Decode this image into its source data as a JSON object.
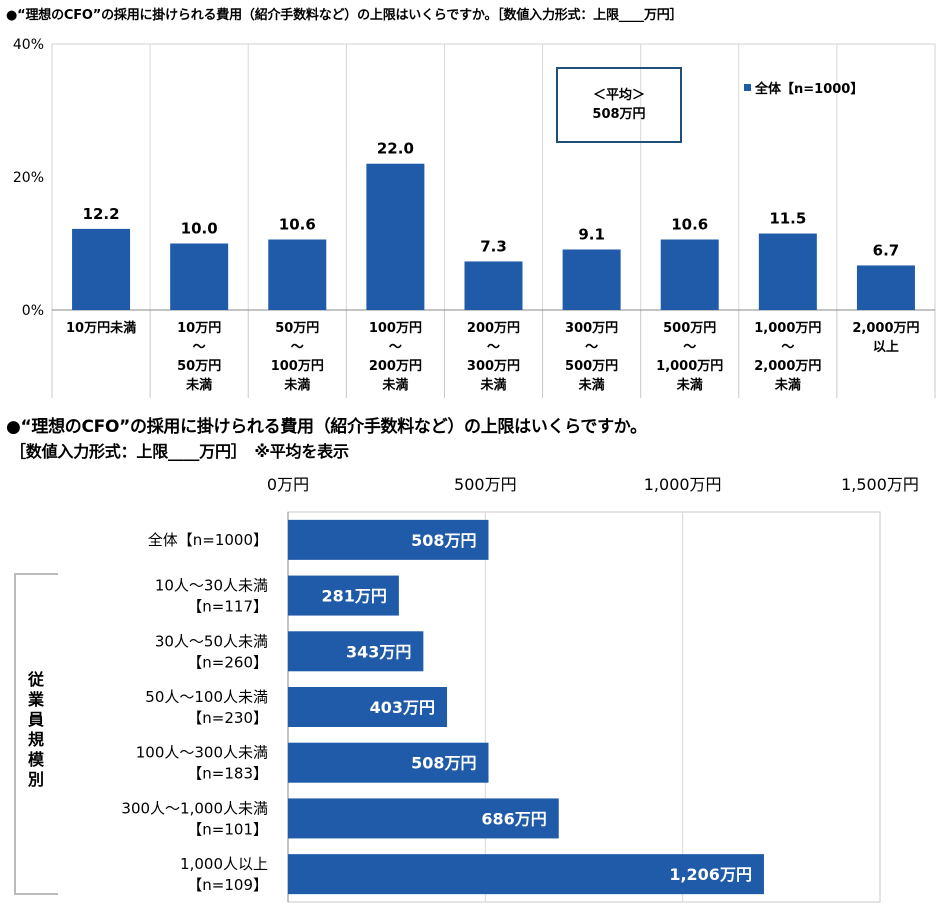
{
  "chart_data": [
    {
      "type": "bar",
      "title": "●“理想のCFO”の採用に掛けられる費用（紹介手数料など）の上限はいくらですか。［数値入力形式：上限____万円］",
      "ylim": [
        0,
        40
      ],
      "y_ticks": [
        "0%",
        "20%",
        "40%"
      ],
      "y_tick_values": [
        0,
        20,
        40
      ],
      "grid": "vertical category separators",
      "legend": "top-right",
      "series": [
        {
          "name": "全体【n=1000】",
          "values": [
            12.2,
            10.0,
            10.6,
            22.0,
            7.3,
            9.1,
            10.6,
            11.5,
            6.7
          ]
        }
      ],
      "value_labels": [
        "12.2",
        "10.0",
        "10.6",
        "22.0",
        "7.3",
        "9.1",
        "10.6",
        "11.5",
        "6.7"
      ],
      "categories": [
        [
          "10万円未満"
        ],
        [
          "10万円",
          "～",
          "50万円",
          "未満"
        ],
        [
          "50万円",
          "～",
          "100万円",
          "未満"
        ],
        [
          "100万円",
          "～",
          "200万円",
          "未満"
        ],
        [
          "200万円",
          "～",
          "300万円",
          "未満"
        ],
        [
          "300万円",
          "～",
          "500万円",
          "未満"
        ],
        [
          "500万円",
          "～",
          "1,000万円",
          "未満"
        ],
        [
          "1,000万円",
          "～",
          "2,000万円",
          "未満"
        ],
        [
          "2,000万円",
          "以上"
        ]
      ],
      "average_box": {
        "line1": "＜平均＞",
        "line2": "508万円"
      },
      "color": "#1f5ba8"
    },
    {
      "type": "bar",
      "orientation": "horizontal",
      "title_line1": "●“理想のCFO”の採用に掛けられる費用（紹介手数料など）の上限はいくらですか。",
      "title_line2": "［数値入力形式：上限____万円］　※平均を表示",
      "xlim": [
        0,
        1500
      ],
      "x_ticks": [
        "0万円",
        "500万円",
        "1,000万円",
        "1,500万円"
      ],
      "x_tick_values": [
        0,
        500,
        1000,
        1500
      ],
      "group_label": "従業員規模別",
      "categories": [
        [
          "全体【n=1000】"
        ],
        [
          "10人～30人未満",
          "【n=117】"
        ],
        [
          "30人～50人未満",
          "【n=260】"
        ],
        [
          "50人～100人未満",
          "【n=230】"
        ],
        [
          "100人～300人未満",
          "【n=183】"
        ],
        [
          "300人～1,000人未満",
          "【n=101】"
        ],
        [
          "1,000人以上",
          "【n=109】"
        ]
      ],
      "values": [
        508,
        281,
        343,
        403,
        508,
        686,
        1206
      ],
      "value_labels": [
        "508万円",
        "281万円",
        "343万円",
        "403万円",
        "508万円",
        "686万円",
        "1,206万円"
      ],
      "color": "#1f5ba8"
    }
  ]
}
